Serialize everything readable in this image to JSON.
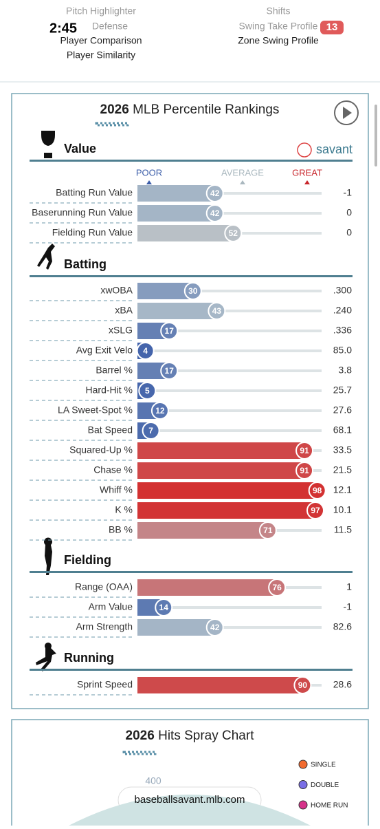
{
  "status_bar": {
    "time": "2:45",
    "battery": "13"
  },
  "top_menu": {
    "left": [
      "Pitch Highlighter",
      "Defense",
      "Player Comparison",
      "Player Similarity"
    ],
    "right": [
      "Shifts",
      "Swing Take Profile",
      "Zone Swing Profile"
    ]
  },
  "percentile_card": {
    "year": "2026",
    "title": "MLB Percentile Rankings",
    "brand": "savant",
    "scale": [
      "POOR",
      "AVERAGE",
      "GREAT"
    ],
    "sections": [
      {
        "title": "Value",
        "rows": [
          {
            "name": "Batting Run Value",
            "percentile": 42,
            "value": "-1"
          },
          {
            "name": "Baserunning Run Value",
            "percentile": 42,
            "value": "0"
          },
          {
            "name": "Fielding Run Value",
            "percentile": 52,
            "value": "0"
          }
        ]
      },
      {
        "title": "Batting",
        "rows": [
          {
            "name": "xwOBA",
            "percentile": 30,
            "value": ".300"
          },
          {
            "name": "xBA",
            "percentile": 43,
            "value": ".240"
          },
          {
            "name": "xSLG",
            "percentile": 17,
            "value": ".336"
          },
          {
            "name": "Avg Exit Velo",
            "percentile": 4,
            "value": "85.0"
          },
          {
            "name": "Barrel %",
            "percentile": 17,
            "value": "3.8"
          },
          {
            "name": "Hard-Hit %",
            "percentile": 5,
            "value": "25.7"
          },
          {
            "name": "LA Sweet-Spot %",
            "percentile": 12,
            "value": "27.6"
          },
          {
            "name": "Bat Speed",
            "percentile": 7,
            "value": "68.1"
          },
          {
            "name": "Squared-Up %",
            "percentile": 91,
            "value": "33.5"
          },
          {
            "name": "Chase %",
            "percentile": 91,
            "value": "21.5"
          },
          {
            "name": "Whiff %",
            "percentile": 98,
            "value": "12.1"
          },
          {
            "name": "K %",
            "percentile": 97,
            "value": "10.1"
          },
          {
            "name": "BB %",
            "percentile": 71,
            "value": "11.5"
          }
        ]
      },
      {
        "title": "Fielding",
        "rows": [
          {
            "name": "Range (OAA)",
            "percentile": 76,
            "value": "1"
          },
          {
            "name": "Arm Value",
            "percentile": 14,
            "value": "-1"
          },
          {
            "name": "Arm Strength",
            "percentile": 42,
            "value": "82.6"
          }
        ]
      },
      {
        "title": "Running",
        "rows": [
          {
            "name": "Sprint Speed",
            "percentile": 90,
            "value": "28.6"
          }
        ]
      }
    ]
  },
  "spray_card": {
    "year": "2026",
    "title": "Hits Spray Chart",
    "distance_label": "400",
    "legend": [
      {
        "name": "SINGLE",
        "color": "#f26b2f"
      },
      {
        "name": "DOUBLE",
        "color": "#7a6fe6"
      },
      {
        "name": "HOME RUN",
        "color": "#d6338a"
      }
    ]
  },
  "url_bar": "baseballsavant.mlb.com"
}
